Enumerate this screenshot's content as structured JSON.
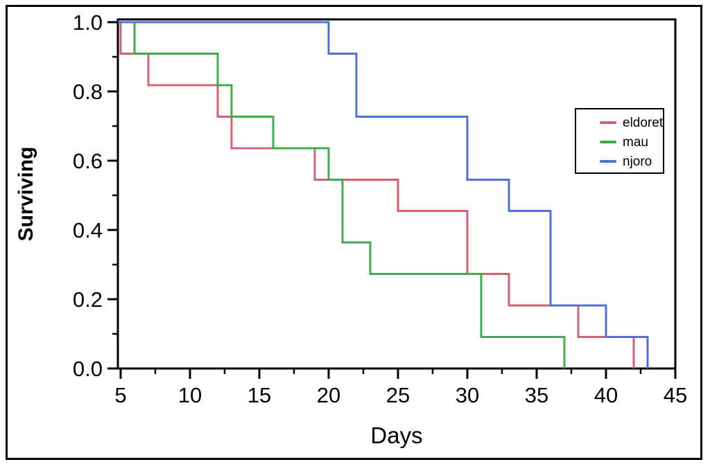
{
  "chart_data": {
    "type": "line",
    "variant": "kaplan-meier-step-survival",
    "title": "",
    "xlabel": "Days",
    "ylabel": "Surviving",
    "xlim": [
      5,
      45
    ],
    "ylim": [
      0.0,
      1.0
    ],
    "x_major_ticks": [
      5,
      10,
      15,
      20,
      25,
      30,
      35,
      40,
      45
    ],
    "x_minor_ticks": [
      7.5,
      12.5,
      17.5,
      22.5,
      27.5,
      32.5,
      37.5,
      42.5
    ],
    "y_major_ticks": [
      0.0,
      0.2,
      0.4,
      0.6,
      0.8,
      1.0
    ],
    "y_minor_ticks": [
      0.1,
      0.3,
      0.5,
      0.7,
      0.9
    ],
    "grid": false,
    "legend_position": "inside-right",
    "frame_color": "#000000",
    "series": [
      {
        "name": "eldoret",
        "color": "#d6606e",
        "start": [
          5,
          1.0
        ],
        "steps": [
          [
            5,
            0.909
          ],
          [
            7,
            0.818
          ],
          [
            12,
            0.727
          ],
          [
            13,
            0.636
          ],
          [
            19,
            0.545
          ],
          [
            25,
            0.455
          ],
          [
            30,
            0.273
          ],
          [
            33,
            0.182
          ],
          [
            38,
            0.091
          ],
          [
            42,
            0.0
          ]
        ]
      },
      {
        "name": "mau",
        "color": "#3eac4a",
        "start": [
          5,
          1.0
        ],
        "steps": [
          [
            6,
            0.909
          ],
          [
            12,
            0.818
          ],
          [
            13,
            0.727
          ],
          [
            16,
            0.636
          ],
          [
            20,
            0.545
          ],
          [
            21,
            0.364
          ],
          [
            23,
            0.273
          ],
          [
            31,
            0.091
          ],
          [
            37,
            0.0
          ]
        ]
      },
      {
        "name": "njoro",
        "color": "#4c71d7",
        "start": [
          5,
          1.0
        ],
        "steps": [
          [
            20,
            0.909
          ],
          [
            22,
            0.727
          ],
          [
            30,
            0.545
          ],
          [
            33,
            0.455
          ],
          [
            36,
            0.182
          ],
          [
            40,
            0.091
          ],
          [
            43,
            0.0
          ]
        ]
      }
    ]
  }
}
